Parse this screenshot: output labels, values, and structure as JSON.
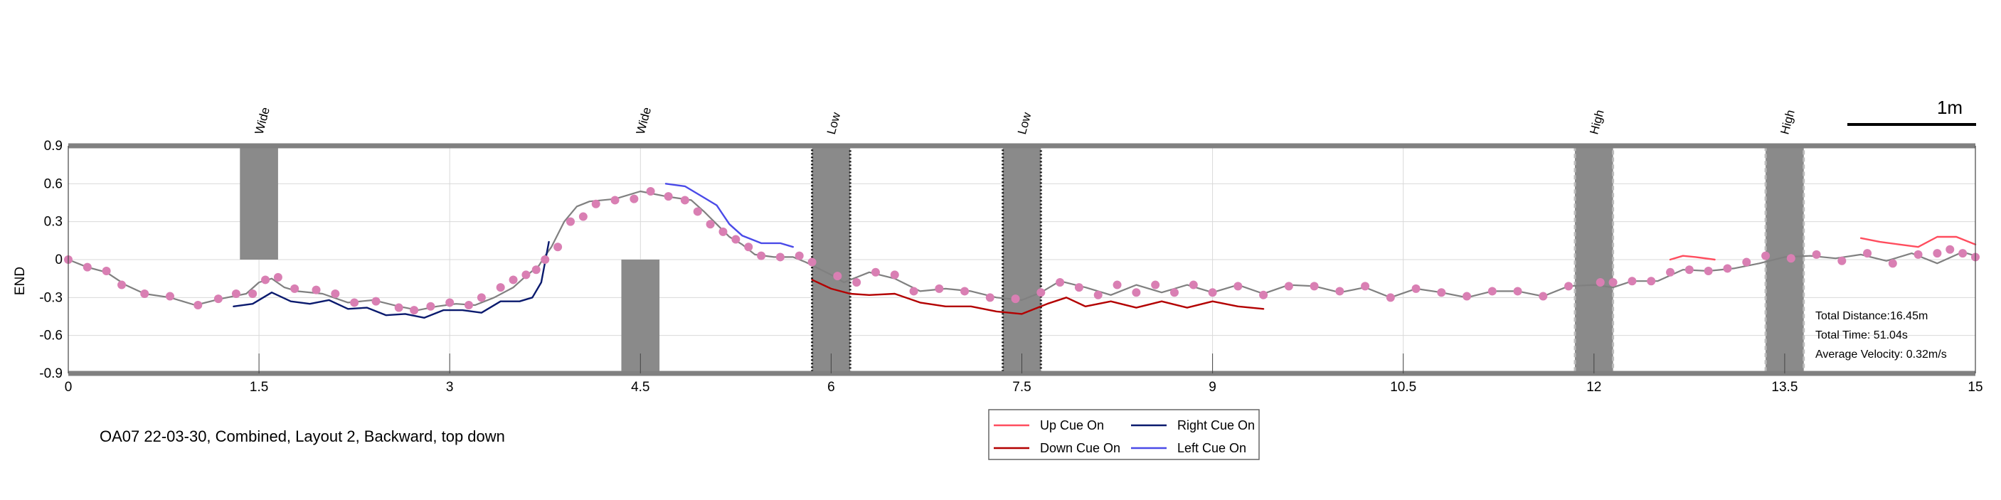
{
  "caption": "OA07 22-03-30, Combined, Layout 2, Backward, top down",
  "scale_bar_label": "1m",
  "stats": {
    "distance": "Total Distance:16.45m",
    "time": "Total Time: 51.04s",
    "velocity": "Average Velocity: 0.32m/s"
  },
  "legend": [
    {
      "label": "Up Cue On",
      "color": "#ff4d5e"
    },
    {
      "label": "Right Cue On",
      "color": "#0a1a6e"
    },
    {
      "label": "Down Cue On",
      "color": "#b30000"
    },
    {
      "label": "Left Cue On",
      "color": "#4a4ae8"
    }
  ],
  "chart_data": {
    "type": "line",
    "title": "",
    "xlabel": "",
    "ylabel": "END",
    "xlim": [
      0,
      15
    ],
    "ylim": [
      -0.9,
      0.9
    ],
    "xticks": [
      0,
      1.5,
      3,
      4.5,
      6,
      7.5,
      9,
      10.5,
      12,
      13.5,
      15
    ],
    "xtick_labels": [
      "0",
      "1.5",
      "3",
      "4.5",
      "6",
      "7.5",
      "9",
      "10.5",
      "12",
      "13.5",
      "15"
    ],
    "yticks": [
      0.9,
      0.6,
      0.3,
      0,
      -0.3,
      -0.6,
      -0.9
    ],
    "ytick_labels": [
      "0.9",
      "0.6",
      "0.3",
      "0",
      "-0.3",
      "-0.6",
      "-0.9"
    ],
    "grid": true,
    "obstacles": [
      {
        "label": "Wide",
        "x0": 1.35,
        "x1": 1.65,
        "y0": 0,
        "y1": 0.9,
        "style": "solid"
      },
      {
        "label": "Wide",
        "x0": 4.35,
        "x1": 4.65,
        "y0": -0.9,
        "y1": 0,
        "style": "solid"
      },
      {
        "label": "Low",
        "x0": 5.85,
        "x1": 6.15,
        "y0": -0.9,
        "y1": 0.9,
        "style": "dotted-dark"
      },
      {
        "label": "Low",
        "x0": 7.35,
        "x1": 7.65,
        "y0": -0.9,
        "y1": 0.9,
        "style": "dotted-dark"
      },
      {
        "label": "High",
        "x0": 11.85,
        "x1": 12.15,
        "y0": -0.9,
        "y1": 0.9,
        "style": "dashed-light"
      },
      {
        "label": "High",
        "x0": 13.35,
        "x1": 13.65,
        "y0": -0.9,
        "y1": 0.9,
        "style": "dashed-light"
      }
    ],
    "series": [
      {
        "name": "path",
        "color": "#808080",
        "x": [
          0,
          0.15,
          0.3,
          0.45,
          0.6,
          0.8,
          1.0,
          1.2,
          1.4,
          1.5,
          1.6,
          1.7,
          1.8,
          2.0,
          2.2,
          2.4,
          2.6,
          2.75,
          2.9,
          3.05,
          3.2,
          3.35,
          3.5,
          3.6,
          3.7,
          3.75,
          3.8,
          3.9,
          4.0,
          4.1,
          4.3,
          4.5,
          4.7,
          4.9,
          5.0,
          5.1,
          5.2,
          5.3,
          5.4,
          5.55,
          5.7,
          5.8,
          6.0,
          6.1,
          6.3,
          6.5,
          6.7,
          6.9,
          7.1,
          7.3,
          7.5,
          7.65,
          7.8,
          8.0,
          8.2,
          8.4,
          8.6,
          8.8,
          9.0,
          9.2,
          9.4,
          9.6,
          9.8,
          10.0,
          10.2,
          10.4,
          10.6,
          10.8,
          11.0,
          11.2,
          11.4,
          11.6,
          11.8,
          12.0,
          12.15,
          12.3,
          12.5,
          12.7,
          12.9,
          13.1,
          13.3,
          13.5,
          13.7,
          13.9,
          14.1,
          14.3,
          14.5,
          14.7,
          14.9,
          15.0
        ],
        "y": [
          0,
          -0.06,
          -0.1,
          -0.2,
          -0.27,
          -0.3,
          -0.36,
          -0.31,
          -0.27,
          -0.18,
          -0.15,
          -0.22,
          -0.25,
          -0.27,
          -0.34,
          -0.32,
          -0.37,
          -0.4,
          -0.37,
          -0.35,
          -0.36,
          -0.3,
          -0.22,
          -0.13,
          -0.05,
          0.03,
          0.1,
          0.3,
          0.42,
          0.46,
          0.48,
          0.54,
          0.5,
          0.47,
          0.38,
          0.28,
          0.18,
          0.12,
          0.04,
          0.02,
          0.02,
          -0.02,
          -0.12,
          -0.18,
          -0.1,
          -0.15,
          -0.25,
          -0.23,
          -0.25,
          -0.3,
          -0.32,
          -0.26,
          -0.17,
          -0.22,
          -0.28,
          -0.2,
          -0.26,
          -0.2,
          -0.26,
          -0.2,
          -0.27,
          -0.2,
          -0.21,
          -0.26,
          -0.22,
          -0.3,
          -0.23,
          -0.26,
          -0.3,
          -0.25,
          -0.25,
          -0.29,
          -0.21,
          -0.2,
          -0.22,
          -0.17,
          -0.17,
          -0.08,
          -0.09,
          -0.07,
          -0.03,
          0.02,
          0.03,
          0.01,
          0.04,
          -0.01,
          0.05,
          -0.03,
          0.06,
          0.03
        ]
      },
      {
        "name": "samples",
        "color": "#d97fb3",
        "x": [
          0,
          0.15,
          0.3,
          0.42,
          0.6,
          0.8,
          1.02,
          1.18,
          1.32,
          1.45,
          1.55,
          1.65,
          1.78,
          1.95,
          2.1,
          2.25,
          2.42,
          2.6,
          2.72,
          2.85,
          3.0,
          3.15,
          3.25,
          3.4,
          3.5,
          3.6,
          3.68,
          3.75,
          3.85,
          3.95,
          4.05,
          4.15,
          4.3,
          4.45,
          4.58,
          4.72,
          4.85,
          4.95,
          5.05,
          5.15,
          5.25,
          5.35,
          5.45,
          5.6,
          5.75,
          5.85,
          6.05,
          6.2,
          6.35,
          6.5,
          6.65,
          6.85,
          7.05,
          7.25,
          7.45,
          7.65,
          7.8,
          7.95,
          8.1,
          8.25,
          8.4,
          8.55,
          8.7,
          8.85,
          9.0,
          9.2,
          9.4,
          9.6,
          9.8,
          10.0,
          10.2,
          10.4,
          10.6,
          10.8,
          11.0,
          11.2,
          11.4,
          11.6,
          11.8,
          12.05,
          12.15,
          12.3,
          12.45,
          12.6,
          12.75,
          12.9,
          13.05,
          13.2,
          13.35,
          13.55,
          13.75,
          13.95,
          14.15,
          14.35,
          14.55,
          14.7,
          14.8,
          14.9,
          15.0
        ],
        "y": [
          0,
          -0.06,
          -0.09,
          -0.2,
          -0.27,
          -0.29,
          -0.36,
          -0.31,
          -0.27,
          -0.27,
          -0.16,
          -0.14,
          -0.23,
          -0.24,
          -0.27,
          -0.34,
          -0.33,
          -0.38,
          -0.4,
          -0.37,
          -0.34,
          -0.36,
          -0.3,
          -0.22,
          -0.16,
          -0.12,
          -0.08,
          0.0,
          0.1,
          0.3,
          0.34,
          0.44,
          0.47,
          0.48,
          0.54,
          0.5,
          0.47,
          0.38,
          0.28,
          0.22,
          0.16,
          0.1,
          0.03,
          0.02,
          0.03,
          -0.02,
          -0.13,
          -0.18,
          -0.1,
          -0.12,
          -0.25,
          -0.23,
          -0.25,
          -0.3,
          -0.31,
          -0.26,
          -0.18,
          -0.22,
          -0.28,
          -0.2,
          -0.26,
          -0.2,
          -0.26,
          -0.2,
          -0.26,
          -0.21,
          -0.28,
          -0.21,
          -0.21,
          -0.25,
          -0.21,
          -0.3,
          -0.23,
          -0.26,
          -0.29,
          -0.25,
          -0.25,
          -0.29,
          -0.21,
          -0.18,
          -0.18,
          -0.17,
          -0.17,
          -0.1,
          -0.08,
          -0.09,
          -0.07,
          -0.02,
          0.03,
          0.01,
          0.04,
          -0.01,
          0.05,
          -0.03,
          0.04,
          0.05,
          0.08,
          0.05,
          0.02
        ]
      },
      {
        "name": "Up Cue On",
        "color": "#ff4d5e",
        "x": [
          12.6,
          12.7,
          12.8,
          12.95,
          14.1,
          14.25,
          14.4,
          14.55,
          14.7,
          14.85,
          15.0
        ],
        "y": [
          0.0,
          0.03,
          0.02,
          0.0,
          0.17,
          0.14,
          0.12,
          0.1,
          0.18,
          0.18,
          0.12
        ]
      },
      {
        "name": "Right Cue On",
        "color": "#0a1a6e",
        "x": [
          1.3,
          1.45,
          1.6,
          1.75,
          1.9,
          2.05,
          2.2,
          2.35,
          2.5,
          2.65,
          2.8,
          2.95,
          3.1,
          3.25,
          3.4,
          3.55,
          3.65,
          3.72,
          3.78
        ],
        "y": [
          -0.37,
          -0.35,
          -0.26,
          -0.33,
          -0.35,
          -0.32,
          -0.39,
          -0.38,
          -0.44,
          -0.43,
          -0.46,
          -0.4,
          -0.4,
          -0.42,
          -0.33,
          -0.33,
          -0.3,
          -0.18,
          0.14
        ]
      },
      {
        "name": "Down Cue On",
        "color": "#b30000",
        "x": [
          5.85,
          6.0,
          6.15,
          6.3,
          6.5,
          6.7,
          6.9,
          7.1,
          7.3,
          7.5,
          7.7,
          7.85,
          8.0,
          8.2,
          8.4,
          8.6,
          8.8,
          9.0,
          9.2,
          9.4
        ],
        "y": [
          -0.16,
          -0.23,
          -0.27,
          -0.28,
          -0.27,
          -0.34,
          -0.37,
          -0.37,
          -0.41,
          -0.43,
          -0.35,
          -0.3,
          -0.37,
          -0.33,
          -0.38,
          -0.33,
          -0.38,
          -0.33,
          -0.37,
          -0.39
        ]
      },
      {
        "name": "Left Cue On",
        "color": "#4a4ae8",
        "x": [
          4.7,
          4.85,
          5.0,
          5.1,
          5.2,
          5.3,
          5.45,
          5.6,
          5.7
        ],
        "y": [
          0.6,
          0.58,
          0.49,
          0.43,
          0.28,
          0.19,
          0.13,
          0.13,
          0.1
        ]
      }
    ]
  }
}
